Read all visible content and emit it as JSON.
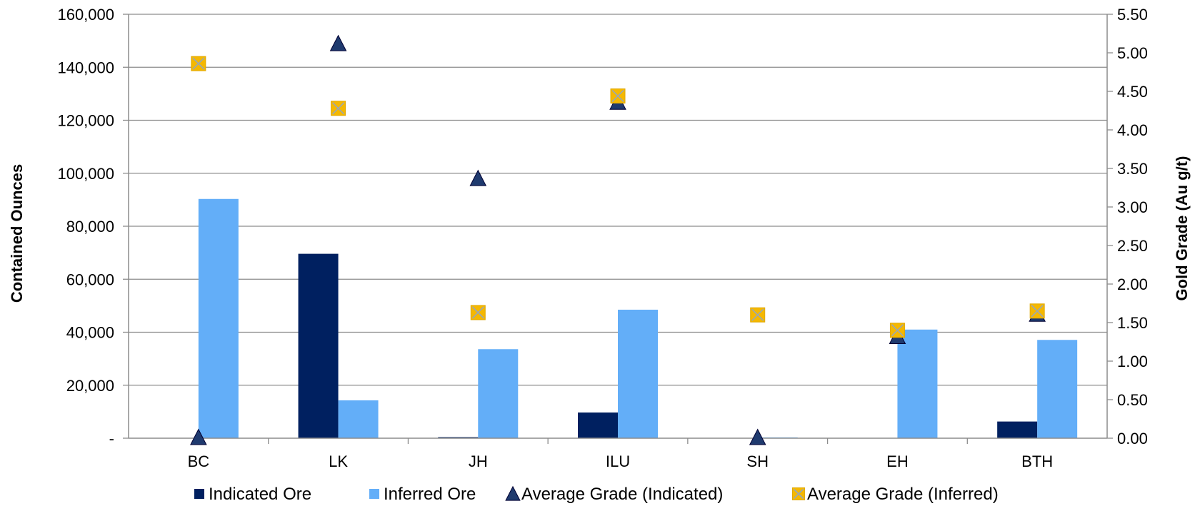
{
  "chart_data": {
    "type": "bar",
    "categories": [
      "BC",
      "LK",
      "JH",
      "ILU",
      "SH",
      "EH",
      "BTH"
    ],
    "bar_series": [
      {
        "name": "Indicated Ore",
        "color": "#002060",
        "values": [
          0,
          69600,
          400,
          9700,
          0,
          0,
          6300
        ]
      },
      {
        "name": "Inferred Ore",
        "color": "#63AEF8",
        "values": [
          90300,
          14300,
          33600,
          48500,
          300,
          41000,
          37100
        ]
      }
    ],
    "marker_series": [
      {
        "name": "Average Grade (Indicated)",
        "marker": "triangle",
        "color": "#1F3A6E",
        "axis": "right",
        "values": [
          0.0,
          5.11,
          3.36,
          4.35,
          0.0,
          1.31,
          1.6
        ]
      },
      {
        "name": "Average Grade (Inferred)",
        "marker": "square-x",
        "color": "#F5B800",
        "axis": "right",
        "values": [
          4.86,
          4.28,
          1.63,
          4.44,
          1.6,
          1.4,
          1.65
        ]
      }
    ],
    "ylabel": "Contained Ounces",
    "y2label": "Gold Grade (Au g/t)",
    "ylim": [
      0,
      160000
    ],
    "y2lim": [
      0,
      5.5
    ],
    "yticks": [
      "-",
      "20,000",
      "40,000",
      "60,000",
      "80,000",
      "100,000",
      "120,000",
      "140,000",
      "160,000"
    ],
    "y2ticks": [
      "0.00",
      "0.50",
      "1.00",
      "1.50",
      "2.00",
      "2.50",
      "3.00",
      "3.50",
      "4.00",
      "4.50",
      "5.00",
      "5.50"
    ],
    "grid": true,
    "legend_position": "bottom"
  }
}
